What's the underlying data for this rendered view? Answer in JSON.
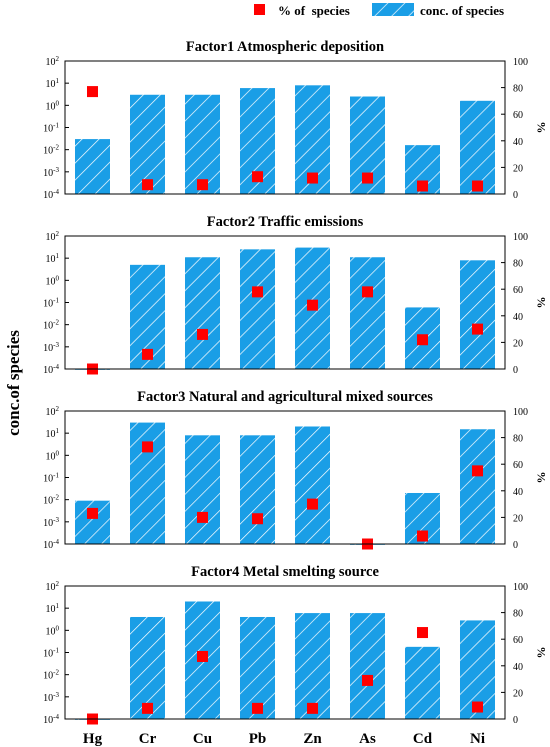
{
  "legend": {
    "pct_label": "% of  species",
    "conc_label": "conc. of species"
  },
  "y_axis_label": "conc.of species",
  "colors": {
    "bar_fill": "#1a9ee6",
    "hatch": "#ffffff",
    "marker": "#ff0000",
    "axis": "#000000"
  },
  "chart_data": [
    {
      "type": "bar",
      "title": "Factor1 Atmospheric deposition",
      "categories": [
        "Hg",
        "Cr",
        "Cu",
        "Pb",
        "Zn",
        "As",
        "Cd",
        "Ni"
      ],
      "left_axis": {
        "label": "conc.of species",
        "scale": "log",
        "ylim": [
          0.0001,
          100
        ],
        "ticks": [
          "10-4",
          "10-3",
          "10-2",
          "10-1",
          "100",
          "101",
          "102"
        ]
      },
      "right_axis": {
        "label": "%",
        "ylim": [
          0,
          100
        ],
        "ticks": [
          0,
          20,
          40,
          60,
          80,
          100
        ]
      },
      "series": [
        {
          "name": "conc. of species",
          "kind": "bar",
          "axis": "left",
          "values": [
            0.03,
            3,
            3,
            6,
            8,
            2.5,
            0.016,
            1.6
          ]
        },
        {
          "name": "% of  species",
          "kind": "marker",
          "axis": "right",
          "values": [
            77,
            7,
            7,
            13,
            12,
            12,
            6,
            6
          ]
        }
      ]
    },
    {
      "type": "bar",
      "title": "Factor2 Traffic emissions",
      "categories": [
        "Hg",
        "Cr",
        "Cu",
        "Pb",
        "Zn",
        "As",
        "Cd",
        "Ni"
      ],
      "left_axis": {
        "label": "conc.of species",
        "scale": "log",
        "ylim": [
          0.0001,
          100
        ],
        "ticks": [
          "10-4",
          "10-3",
          "10-2",
          "10-1",
          "100",
          "101",
          "102"
        ]
      },
      "right_axis": {
        "label": "%",
        "ylim": [
          0,
          100
        ],
        "ticks": [
          0,
          20,
          40,
          60,
          80,
          100
        ]
      },
      "series": [
        {
          "name": "conc. of species",
          "kind": "bar",
          "axis": "left",
          "values": [
            0.0001,
            5,
            11,
            25,
            30,
            11,
            0.06,
            8
          ]
        },
        {
          "name": "% of  species",
          "kind": "marker",
          "axis": "right",
          "values": [
            0,
            11,
            26,
            58,
            48,
            58,
            22,
            30
          ]
        }
      ]
    },
    {
      "type": "bar",
      "title": "Factor3 Natural and agricultural mixed sources",
      "categories": [
        "Hg",
        "Cr",
        "Cu",
        "Pb",
        "Zn",
        "As",
        "Cd",
        "Ni"
      ],
      "left_axis": {
        "label": "conc.of species",
        "scale": "log",
        "ylim": [
          0.0001,
          100
        ],
        "ticks": [
          "10-4",
          "10-3",
          "10-2",
          "10-1",
          "100",
          "101",
          "102"
        ]
      },
      "right_axis": {
        "label": "%",
        "ylim": [
          0,
          100
        ],
        "ticks": [
          0,
          20,
          40,
          60,
          80,
          100
        ]
      },
      "series": [
        {
          "name": "conc. of species",
          "kind": "bar",
          "axis": "left",
          "values": [
            0.009,
            30,
            8,
            8,
            20,
            0.0001,
            0.02,
            15
          ]
        },
        {
          "name": "% of  species",
          "kind": "marker",
          "axis": "right",
          "values": [
            23,
            73,
            20,
            19,
            30,
            0,
            6,
            55
          ]
        }
      ]
    },
    {
      "type": "bar",
      "title": "Factor4 Metal smelting source",
      "categories": [
        "Hg",
        "Cr",
        "Cu",
        "Pb",
        "Zn",
        "As",
        "Cd",
        "Ni"
      ],
      "left_axis": {
        "label": "conc.of species",
        "scale": "log",
        "ylim": [
          0.0001,
          100
        ],
        "ticks": [
          "10-4",
          "10-3",
          "10-2",
          "10-1",
          "100",
          "101",
          "102"
        ]
      },
      "right_axis": {
        "label": "%",
        "ylim": [
          0,
          100
        ],
        "ticks": [
          0,
          20,
          40,
          60,
          80,
          100
        ]
      },
      "series": [
        {
          "name": "conc. of species",
          "kind": "bar",
          "axis": "left",
          "values": [
            0.0001,
            4,
            20,
            4,
            6,
            6,
            0.18,
            2.8
          ]
        },
        {
          "name": "% of  species",
          "kind": "marker",
          "axis": "right",
          "values": [
            0,
            8,
            47,
            8,
            8,
            29,
            65,
            9
          ]
        }
      ]
    }
  ]
}
